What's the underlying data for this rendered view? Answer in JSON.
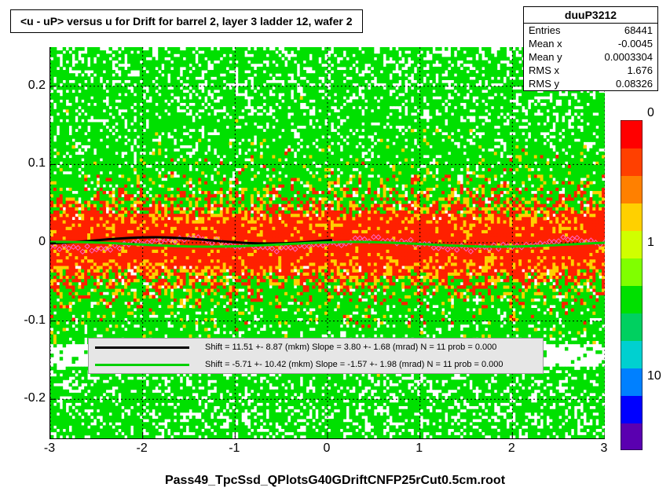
{
  "title": "<u - uP>       versus   u for Drift for barrel 2, layer 3 ladder 12, wafer 2",
  "stats": {
    "name": "duuP3212",
    "entries_label": "Entries",
    "entries_value": "68441",
    "meanx_label": "Mean x",
    "meanx_value": "-0.0045",
    "meany_label": "Mean y",
    "meany_value": "0.0003304",
    "rmsx_label": "RMS x",
    "rmsx_value": "1.676",
    "rmsy_label": "RMS y",
    "rmsy_value": "0.08326"
  },
  "footer_label": "Pass49_TpcSsd_QPlotsG40GDriftCNFP25rCut0.5cm.root",
  "chart": {
    "type": "heatmap2d",
    "xlim": [
      -3,
      3
    ],
    "ylim": [
      -0.25,
      0.25
    ],
    "xtick_values": [
      -3,
      -2,
      -1,
      0,
      1,
      2,
      3
    ],
    "xtick_labels": [
      "-3",
      "-2",
      "-1",
      "0",
      "1",
      "2",
      "3"
    ],
    "ytick_values": [
      -0.2,
      -0.1,
      0,
      0.1,
      0.2
    ],
    "ytick_labels": [
      "-0.2",
      "-0.1",
      "0",
      "0.1",
      "0.2"
    ],
    "grid_color": "#000000",
    "grid_dash": "2,3",
    "background_color": "#ffffff",
    "colorbar": {
      "scale": "log",
      "ticks": [
        1,
        10
      ],
      "tick_labels": [
        "1",
        "10"
      ],
      "extra_tick": "0",
      "colors": [
        "#5a00b0",
        "#0000ff",
        "#0080ff",
        "#00d0d0",
        "#00d060",
        "#00e000",
        "#80ff00",
        "#d0ff00",
        "#ffd000",
        "#ff8000",
        "#ff4000",
        "#ff0000"
      ]
    },
    "heatmap_colors": {
      "low": "#00e000",
      "mid": "#ffd000",
      "high": "#ff2000",
      "empty": "#ffffff"
    }
  },
  "fit_lines": {
    "black": {
      "color": "#000000",
      "width": 3,
      "shift": "11.51 +- 8.87",
      "slope": "3.80 +- 1.68",
      "n": "11",
      "prob": "0.000",
      "text": "Shift =    11.51 +- 8.87 (mkm) Slope =     3.80 +- 1.68 (mrad)  N = 11 prob = 0.000"
    },
    "green": {
      "color": "#00d000",
      "width": 3,
      "shift": "-5.71 +- 10.42",
      "slope": "-1.57 +- 1.98",
      "n": "11",
      "prob": "0.000",
      "text": "Shift =    -5.71 +- 10.42 (mkm) Slope =    -1.57 +- 1.98 (mrad)  N = 11 prob = 0.000"
    }
  },
  "marker_color": "#ff66cc"
}
